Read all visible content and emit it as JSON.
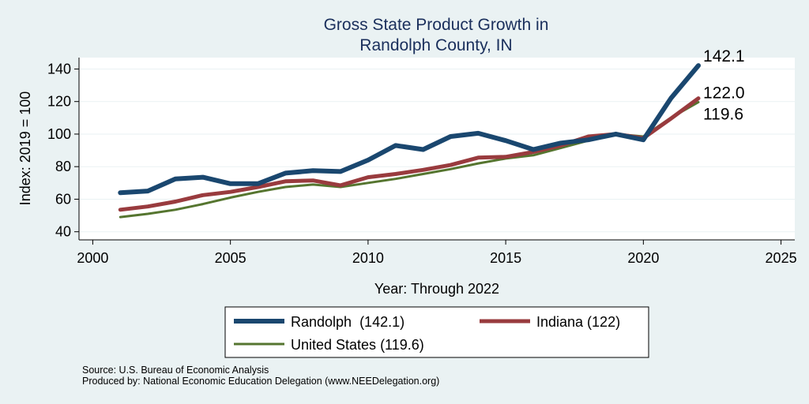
{
  "chart_data": {
    "type": "line",
    "title_lines": [
      "Gross State Product Growth in",
      "Randolph County, IN"
    ],
    "xlabel": "Year: Through 2022",
    "ylabel": "Index: 2019 = 100",
    "xlim": [
      1999.5,
      2025.5
    ],
    "ylim": [
      35,
      147
    ],
    "xticks": [
      2000,
      2005,
      2010,
      2015,
      2020,
      2025
    ],
    "yticks": [
      40,
      60,
      80,
      100,
      120,
      140
    ],
    "grid": "horizontal",
    "legend_position": "bottom",
    "x": [
      2001,
      2002,
      2003,
      2004,
      2005,
      2006,
      2007,
      2008,
      2009,
      2010,
      2011,
      2012,
      2013,
      2014,
      2015,
      2016,
      2017,
      2018,
      2019,
      2020,
      2021,
      2022
    ],
    "series": [
      {
        "name": "United States",
        "legend_label": "United States (119.6)",
        "color": "#55752f",
        "width": 3,
        "values": [
          49,
          51,
          53.5,
          57,
          61,
          64.5,
          67.5,
          69,
          67.5,
          70,
          72.5,
          75.5,
          78.5,
          82,
          85,
          87,
          91.5,
          96,
          100,
          98.5,
          110,
          119.6
        ],
        "end_label": "119.6"
      },
      {
        "name": "Indiana",
        "legend_label": "Indiana (122)",
        "color": "#993b3e",
        "width": 5,
        "values": [
          53.5,
          55.5,
          58.5,
          62.5,
          64.5,
          67.5,
          71,
          71.5,
          68.5,
          73.5,
          75.5,
          78,
          81,
          85.5,
          86,
          89,
          93,
          98.5,
          100,
          97.5,
          109.5,
          122.0
        ],
        "end_label": "122.0"
      },
      {
        "name": "Randolph",
        "legend_label": "Randolph  (142.1)",
        "color": "#1a476f",
        "width": 6,
        "values": [
          64,
          65,
          72.5,
          73.5,
          69.5,
          69.5,
          76,
          77.5,
          77,
          84,
          93,
          90.5,
          98.5,
          100.5,
          96,
          90.5,
          94.5,
          96.5,
          100,
          96.5,
          122,
          142.1
        ],
        "end_label": "142.1"
      }
    ]
  },
  "footer": {
    "source": "Source: U.S. Bureau of Economic Analysis",
    "produced_by": "Produced by: National Economic Education Delegation (www.NEEDelegation.org)"
  }
}
